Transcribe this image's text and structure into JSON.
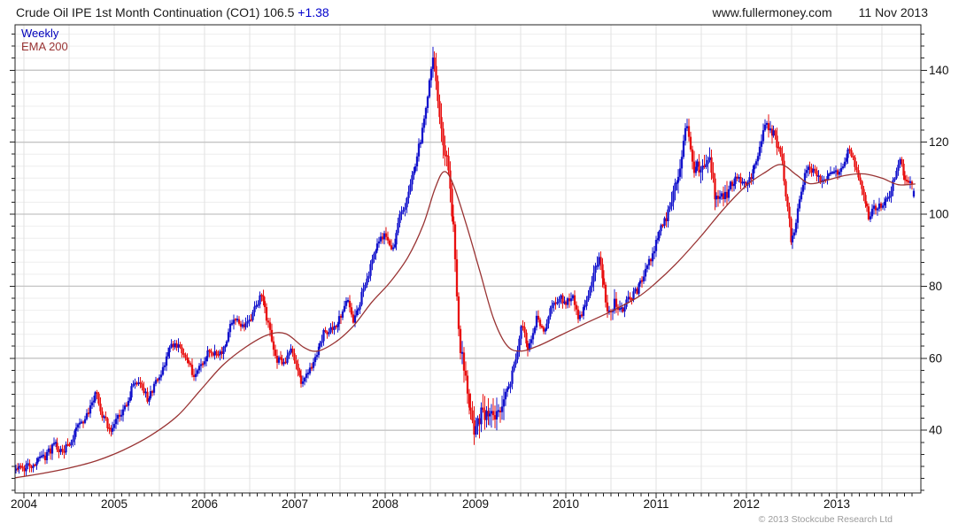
{
  "header": {
    "title": "Crude Oil IPE 1st Month Continuation (CO1)",
    "last_price": "106.5",
    "change": "+1.38",
    "website": "www.fullermoney.com",
    "date": "11 Nov 2013"
  },
  "legend": {
    "series1": "Weekly",
    "series2": "EMA 200"
  },
  "footer": {
    "copyright": "© 2013 Stockcube Research Ltd"
  },
  "colors": {
    "up_bar": "#1414cc",
    "down_bar": "#e81010",
    "ema_line": "#993333",
    "legend_weekly_text": "#0000bb",
    "change_text": "#0000cc",
    "grid_minor": "#eeeeee",
    "grid_vertical": "#e2e2e2",
    "grid_major": "#c4c4c4",
    "axis": "#222222",
    "label_text": "#111111",
    "copyright_text": "#9b9b9b"
  },
  "chart_data": {
    "type": "candlestick",
    "title": "Crude Oil IPE 1st Month Continuation (CO1)",
    "last": 106.5,
    "change": 1.38,
    "timeframe": "Weekly",
    "x_domain": [
      2003.902,
      2013.931
    ],
    "y_domain": [
      22.6,
      152.6
    ],
    "yticks": [
      40,
      60,
      80,
      100,
      120,
      140
    ],
    "y_minor_step": 3.3333,
    "xticks": [
      2004,
      2005,
      2006,
      2007,
      2008,
      2009,
      2010,
      2011,
      2012,
      2013
    ],
    "x_grid_step_years": 0.5,
    "x_minor_tick_step_years": 0.08333,
    "grid": true,
    "y_axis_side": "right",
    "series": [
      {
        "name": "Weekly",
        "render": "weekly_hlc_bars",
        "anchors": [
          [
            2003.9,
            29
          ],
          [
            2004.0,
            29.5
          ],
          [
            2004.08,
            30.5
          ],
          [
            2004.17,
            31.5
          ],
          [
            2004.25,
            33
          ],
          [
            2004.33,
            36
          ],
          [
            2004.42,
            33.5
          ],
          [
            2004.5,
            36.5
          ],
          [
            2004.58,
            40
          ],
          [
            2004.67,
            42.5
          ],
          [
            2004.75,
            47.5
          ],
          [
            2004.81,
            50.5
          ],
          [
            2004.88,
            43
          ],
          [
            2004.96,
            40.5
          ],
          [
            2005.04,
            44
          ],
          [
            2005.13,
            46
          ],
          [
            2005.21,
            53
          ],
          [
            2005.29,
            52
          ],
          [
            2005.38,
            48.5
          ],
          [
            2005.46,
            53
          ],
          [
            2005.54,
            57
          ],
          [
            2005.63,
            63.5
          ],
          [
            2005.71,
            63
          ],
          [
            2005.79,
            59.5
          ],
          [
            2005.88,
            55.5
          ],
          [
            2005.96,
            57.5
          ],
          [
            2006.04,
            62.5
          ],
          [
            2006.13,
            60.5
          ],
          [
            2006.21,
            62.5
          ],
          [
            2006.29,
            69.5
          ],
          [
            2006.38,
            70
          ],
          [
            2006.46,
            68.5
          ],
          [
            2006.54,
            73
          ],
          [
            2006.63,
            78
          ],
          [
            2006.71,
            69
          ],
          [
            2006.79,
            59.5
          ],
          [
            2006.88,
            59
          ],
          [
            2006.96,
            62.5
          ],
          [
            2007.04,
            55
          ],
          [
            2007.08,
            52.5
          ],
          [
            2007.17,
            57.5
          ],
          [
            2007.25,
            62
          ],
          [
            2007.33,
            67.5
          ],
          [
            2007.42,
            68.5
          ],
          [
            2007.5,
            71
          ],
          [
            2007.58,
            76.5
          ],
          [
            2007.65,
            70.5
          ],
          [
            2007.75,
            78
          ],
          [
            2007.83,
            84.5
          ],
          [
            2007.92,
            92.5
          ],
          [
            2008.0,
            94
          ],
          [
            2008.08,
            89.5
          ],
          [
            2008.17,
            100.5
          ],
          [
            2008.25,
            104.5
          ],
          [
            2008.33,
            113.5
          ],
          [
            2008.42,
            124
          ],
          [
            2008.5,
            139
          ],
          [
            2008.53,
            146
          ],
          [
            2008.58,
            134
          ],
          [
            2008.67,
            116
          ],
          [
            2008.75,
            99
          ],
          [
            2008.83,
            63
          ],
          [
            2008.92,
            50
          ],
          [
            2008.99,
            39.5
          ],
          [
            2009.06,
            44.5
          ],
          [
            2009.13,
            43.5
          ],
          [
            2009.21,
            45
          ],
          [
            2009.29,
            48
          ],
          [
            2009.38,
            53
          ],
          [
            2009.46,
            62
          ],
          [
            2009.52,
            70
          ],
          [
            2009.58,
            61.5
          ],
          [
            2009.67,
            71
          ],
          [
            2009.75,
            67.5
          ],
          [
            2009.83,
            73
          ],
          [
            2009.92,
            77
          ],
          [
            2010.0,
            75.5
          ],
          [
            2010.08,
            77
          ],
          [
            2010.15,
            70.5
          ],
          [
            2010.25,
            78
          ],
          [
            2010.33,
            85
          ],
          [
            2010.38,
            87.5
          ],
          [
            2010.46,
            71.5
          ],
          [
            2010.54,
            75.5
          ],
          [
            2010.63,
            74
          ],
          [
            2010.71,
            76.5
          ],
          [
            2010.79,
            79
          ],
          [
            2010.88,
            84
          ],
          [
            2010.96,
            89
          ],
          [
            2011.04,
            95
          ],
          [
            2011.13,
            100
          ],
          [
            2011.21,
            108
          ],
          [
            2011.29,
            117
          ],
          [
            2011.33,
            125
          ],
          [
            2011.42,
            112.5
          ],
          [
            2011.5,
            113.5
          ],
          [
            2011.58,
            117
          ],
          [
            2011.65,
            106
          ],
          [
            2011.75,
            103.5
          ],
          [
            2011.83,
            108.5
          ],
          [
            2011.92,
            110
          ],
          [
            2012.0,
            107.5
          ],
          [
            2012.08,
            112
          ],
          [
            2012.17,
            120
          ],
          [
            2012.21,
            125
          ],
          [
            2012.29,
            122.5
          ],
          [
            2012.38,
            117
          ],
          [
            2012.44,
            105
          ],
          [
            2012.5,
            91.5
          ],
          [
            2012.58,
            103
          ],
          [
            2012.67,
            113.5
          ],
          [
            2012.75,
            111.5
          ],
          [
            2012.83,
            108.5
          ],
          [
            2012.92,
            110.5
          ],
          [
            2013.0,
            111.5
          ],
          [
            2013.08,
            114
          ],
          [
            2013.13,
            117.5
          ],
          [
            2013.21,
            113.5
          ],
          [
            2013.29,
            107
          ],
          [
            2013.35,
            99.5
          ],
          [
            2013.44,
            102
          ],
          [
            2013.52,
            103
          ],
          [
            2013.6,
            106.5
          ],
          [
            2013.67,
            113
          ],
          [
            2013.71,
            115.5
          ],
          [
            2013.75,
            110
          ],
          [
            2013.8,
            108
          ],
          [
            2013.84,
            109
          ],
          [
            2013.87,
            106.5
          ]
        ]
      },
      {
        "name": "EMA 200",
        "render": "line",
        "anchors": [
          [
            2003.9,
            26.8
          ],
          [
            2004.2,
            28
          ],
          [
            2004.5,
            29.5
          ],
          [
            2004.8,
            31.5
          ],
          [
            2005.1,
            34.5
          ],
          [
            2005.4,
            38.5
          ],
          [
            2005.7,
            44
          ],
          [
            2005.95,
            51
          ],
          [
            2006.2,
            58
          ],
          [
            2006.45,
            63
          ],
          [
            2006.7,
            66.5
          ],
          [
            2006.9,
            66.8
          ],
          [
            2007.1,
            63
          ],
          [
            2007.25,
            62
          ],
          [
            2007.45,
            64.5
          ],
          [
            2007.65,
            69
          ],
          [
            2007.85,
            75.5
          ],
          [
            2008.05,
            81
          ],
          [
            2008.25,
            88
          ],
          [
            2008.42,
            97
          ],
          [
            2008.55,
            107
          ],
          [
            2008.65,
            111.8
          ],
          [
            2008.75,
            108.5
          ],
          [
            2008.9,
            97
          ],
          [
            2009.05,
            84
          ],
          [
            2009.2,
            71
          ],
          [
            2009.35,
            63.5
          ],
          [
            2009.5,
            62
          ],
          [
            2009.7,
            63.5
          ],
          [
            2009.95,
            66.5
          ],
          [
            2010.2,
            69.5
          ],
          [
            2010.5,
            73
          ],
          [
            2010.8,
            77
          ],
          [
            2011.0,
            81
          ],
          [
            2011.25,
            87
          ],
          [
            2011.5,
            94
          ],
          [
            2011.75,
            101.5
          ],
          [
            2012.0,
            108
          ],
          [
            2012.2,
            111.5
          ],
          [
            2012.38,
            113.8
          ],
          [
            2012.55,
            111
          ],
          [
            2012.7,
            108.5
          ],
          [
            2012.9,
            109.5
          ],
          [
            2013.1,
            110.8
          ],
          [
            2013.3,
            111.2
          ],
          [
            2013.5,
            110
          ],
          [
            2013.68,
            108.2
          ],
          [
            2013.87,
            108.4
          ]
        ]
      }
    ]
  }
}
